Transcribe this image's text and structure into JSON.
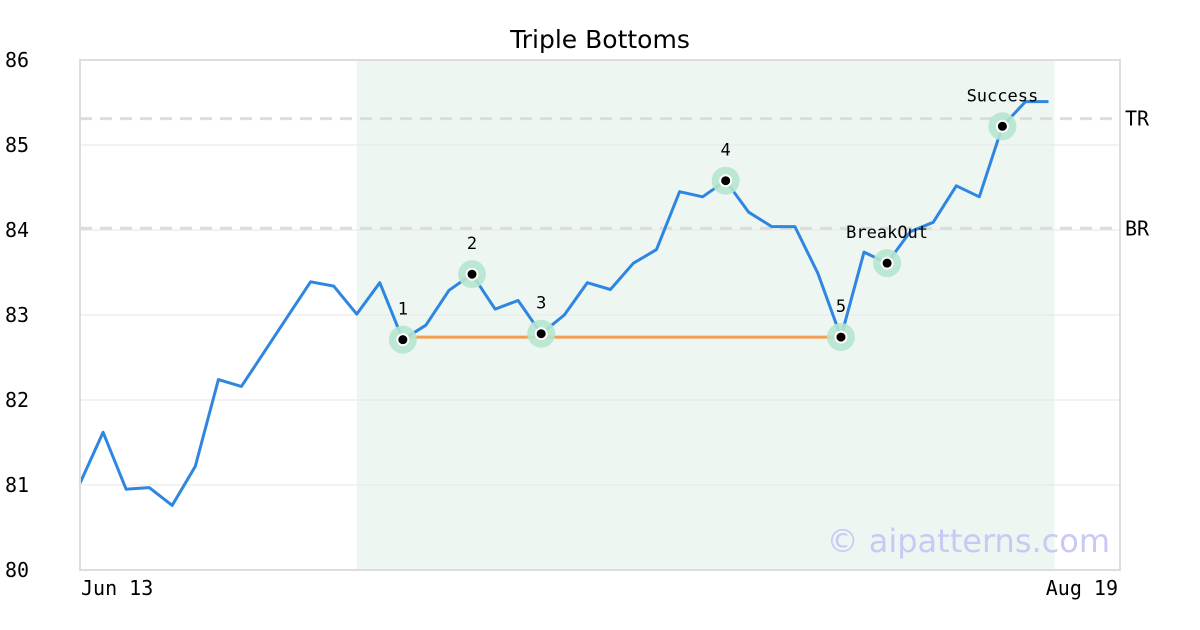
{
  "chart_data": {
    "type": "line",
    "title": "Triple Bottoms",
    "xlabel": "",
    "ylabel": "",
    "ylim": [
      80,
      86
    ],
    "y_ticks": [
      "80",
      "81",
      "82",
      "83",
      "84",
      "85",
      "86"
    ],
    "x_ticks": [
      "Jun 13",
      "Aug 19"
    ],
    "grid": "horizontal",
    "series": [
      {
        "name": "",
        "color": "#2f86e0",
        "values": [
          81.02,
          81.62,
          80.95,
          80.97,
          80.76,
          81.22,
          82.24,
          82.16,
          82.57,
          82.98,
          83.39,
          83.34,
          83.01,
          83.38,
          82.71,
          82.88,
          83.29,
          83.48,
          83.07,
          83.17,
          82.78,
          83.0,
          83.38,
          83.3,
          83.61,
          83.77,
          84.45,
          84.39,
          84.58,
          84.21,
          84.04,
          84.04,
          83.49,
          82.74,
          83.74,
          83.61,
          83.98,
          84.09,
          84.52,
          84.39,
          85.22,
          85.51,
          85.51
        ]
      }
    ],
    "shaded_region": {
      "x_start_index": 12,
      "x_end_index": 42,
      "color": "#eef6f2"
    },
    "levels": [
      {
        "label": "TR",
        "value": 85.31
      },
      {
        "label": "BR",
        "value": 84.02
      }
    ],
    "support_line": {
      "from_index": 14,
      "to_index": 33,
      "value": 82.74,
      "color": "#f0a050"
    },
    "points": [
      {
        "label": "1",
        "index": 14,
        "value": 82.71
      },
      {
        "label": "2",
        "index": 17,
        "value": 83.48
      },
      {
        "label": "3",
        "index": 20,
        "value": 82.78
      },
      {
        "label": "4",
        "index": 28,
        "value": 84.58
      },
      {
        "label": "5",
        "index": 33,
        "value": 82.74
      },
      {
        "label": "BreakOut",
        "index": 35,
        "value": 83.61
      },
      {
        "label": "Success",
        "index": 40,
        "value": 85.22
      }
    ],
    "watermark": "© aipatterns.com"
  }
}
